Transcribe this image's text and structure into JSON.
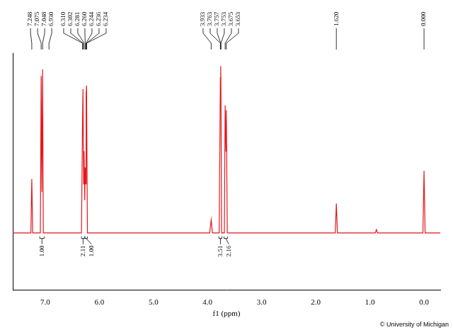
{
  "chart_data": {
    "type": "line",
    "color": "#e3171c",
    "xlabel": "f1 (ppm)",
    "xlim": [
      7.6,
      -0.3
    ],
    "xticks": [
      {
        "value": 7,
        "label": "7.0"
      },
      {
        "value": 6,
        "label": "6.0"
      },
      {
        "value": 5,
        "label": "5.0"
      },
      {
        "value": 4,
        "label": "4.0"
      },
      {
        "value": 3,
        "label": "3.0"
      },
      {
        "value": 2,
        "label": "2.0"
      },
      {
        "value": 1,
        "label": "1.0"
      },
      {
        "value": 0,
        "label": "0.0"
      }
    ],
    "ylim": [
      -0.35,
      1.1
    ],
    "tick_labels": "x",
    "grid": false,
    "x": [
      7.6,
      7.265,
      7.248,
      7.231,
      7.09,
      7.075,
      7.062,
      7.048,
      7.035,
      6.33,
      6.31,
      6.302,
      6.29,
      6.281,
      6.27,
      6.26,
      6.252,
      6.244,
      6.236,
      6.22,
      3.96,
      3.933,
      3.91,
      3.785,
      3.763,
      3.757,
      3.753,
      3.74,
      3.69,
      3.675,
      3.66,
      3.653,
      3.635,
      1.64,
      1.62,
      1.6,
      0.9,
      0.88,
      0.86,
      0.02,
      0.0,
      -0.02,
      -0.3
    ],
    "values": [
      0,
      0,
      0.33,
      0,
      0,
      0.96,
      0.25,
      1.0,
      0,
      0,
      0.7,
      0.88,
      0.3,
      0.5,
      0.2,
      0.4,
      0.3,
      0.85,
      0.9,
      0,
      0,
      0.08,
      0,
      0,
      0.95,
      1.02,
      0.9,
      0,
      0,
      0.78,
      0.5,
      0.75,
      0,
      0,
      0.18,
      0,
      0,
      0.02,
      0,
      0,
      0.38,
      0,
      0
    ],
    "peak_labels": [
      [
        "7.248",
        "7.075",
        "7.048",
        "6.930"
      ],
      [
        "6.310",
        "6.302",
        "6.281",
        "6.260",
        "6.244",
        "6.236",
        "6.234"
      ],
      [
        "3.933",
        "3.763",
        "3.757",
        "3.753",
        "3.675",
        "3.653"
      ],
      [
        "1.620"
      ],
      [
        "0.000"
      ]
    ],
    "integrals": [
      {
        "range": [
          7.1,
          7.02
        ],
        "label": "1.00"
      },
      {
        "range": [
          6.33,
          6.27
        ],
        "label": "2.11"
      },
      {
        "range": [
          6.265,
          6.22
        ],
        "label": "1.00"
      },
      {
        "range": [
          3.79,
          3.735
        ],
        "label": "3.51"
      },
      {
        "range": [
          3.695,
          3.63
        ],
        "label": "2.16"
      }
    ],
    "footer": "© University of Michigan"
  }
}
